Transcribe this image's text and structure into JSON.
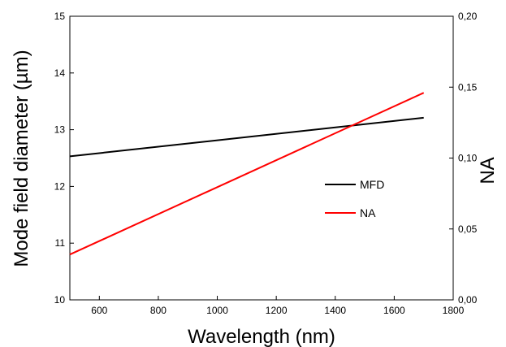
{
  "chart_data": {
    "type": "line",
    "xlabel": "Wavelength (nm)",
    "ylabel_left": "Mode field diameter (µm)",
    "ylabel_right": "NA",
    "xlim": [
      500,
      1800
    ],
    "ylim_left": [
      10,
      15
    ],
    "ylim_right": [
      0.0,
      0.2
    ],
    "x_ticks": [
      600,
      800,
      1000,
      1200,
      1400,
      1600,
      1800
    ],
    "y_left_ticks": [
      10,
      11,
      12,
      13,
      14,
      15
    ],
    "y_right_ticks": [
      "0,00",
      "0,05",
      "0,10",
      "0,15",
      "0,20"
    ],
    "grid": false,
    "legend_position": "center-right",
    "series": [
      {
        "name": "MFD",
        "axis": "left",
        "color": "#000000",
        "x": [
          500,
          1700
        ],
        "y": [
          12.53,
          13.21
        ]
      },
      {
        "name": "NA",
        "axis": "right",
        "color": "#ff0000",
        "x": [
          500,
          1700
        ],
        "y": [
          0.032,
          0.146
        ]
      }
    ]
  }
}
